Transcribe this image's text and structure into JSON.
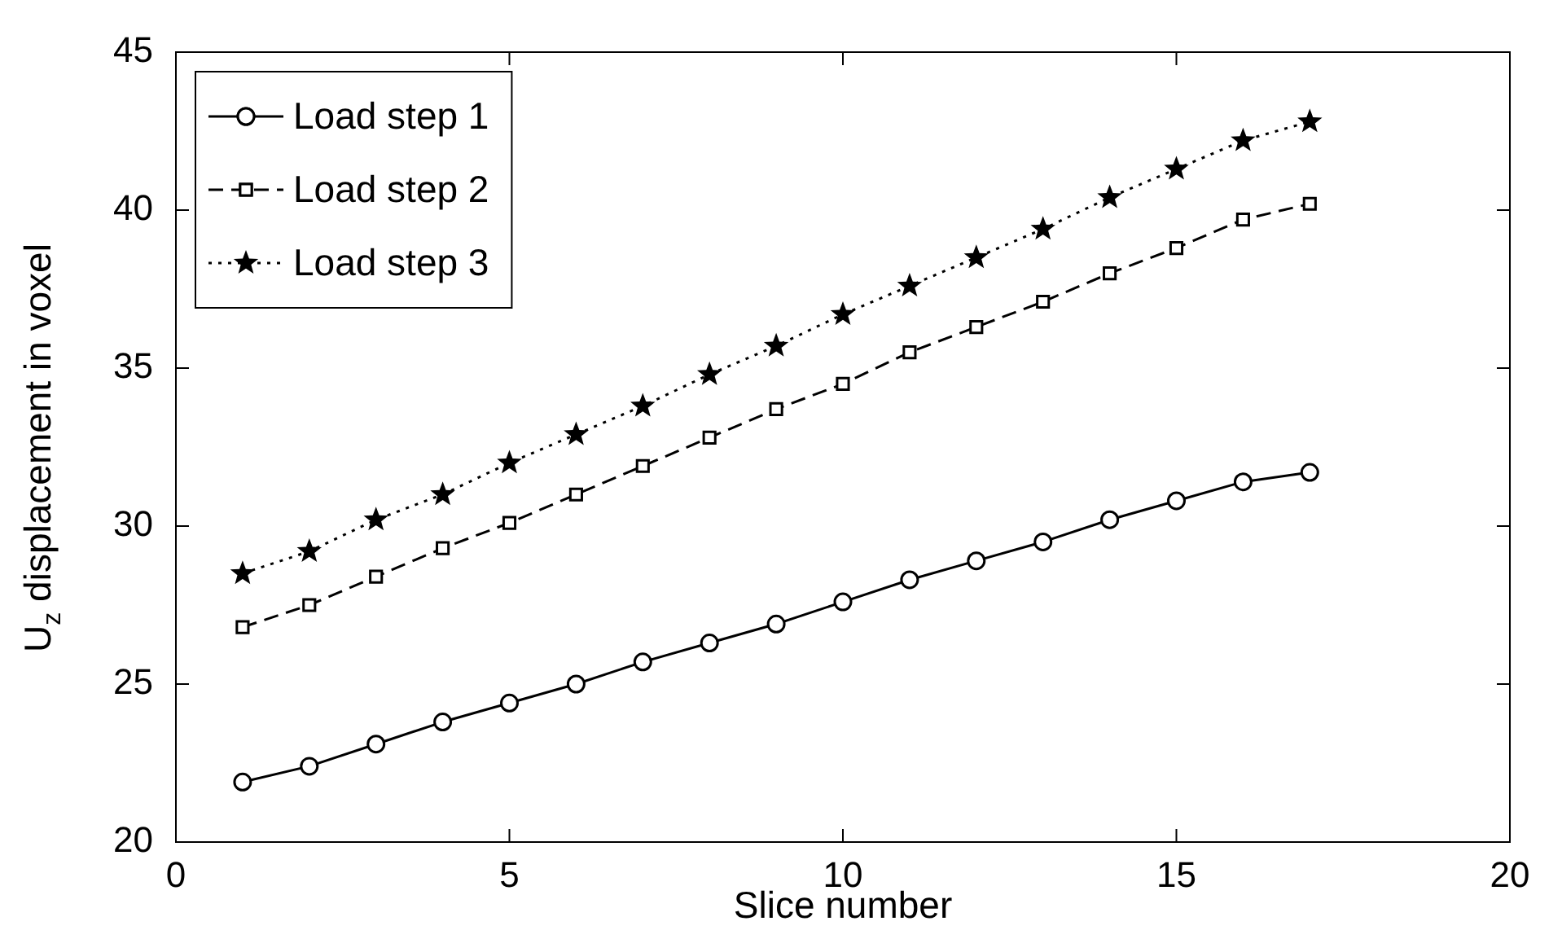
{
  "chart_data": {
    "type": "line",
    "xlabel": "Slice number",
    "ylabel": "U$_{z}$ displacement in voxel",
    "x": [
      1,
      2,
      3,
      4,
      5,
      6,
      7,
      8,
      9,
      10,
      11,
      12,
      13,
      14,
      15,
      16,
      17
    ],
    "series": [
      {
        "name": "Load step 1",
        "color": "#000000",
        "marker": "circle",
        "line_style": "solid",
        "values": [
          21.9,
          22.4,
          23.1,
          23.8,
          24.4,
          25.0,
          25.7,
          26.3,
          26.9,
          27.6,
          28.3,
          28.9,
          29.5,
          30.2,
          30.8,
          31.4,
          31.7
        ]
      },
      {
        "name": "Load step 2",
        "color": "#000000",
        "marker": "square",
        "line_style": "dashed",
        "values": [
          26.8,
          27.5,
          28.4,
          29.3,
          30.1,
          31.0,
          31.9,
          32.8,
          33.7,
          34.5,
          35.5,
          36.3,
          37.1,
          38.0,
          38.8,
          39.7,
          40.2
        ]
      },
      {
        "name": "Load step 3",
        "color": "#000000",
        "marker": "star",
        "line_style": "dotted",
        "values": [
          28.5,
          29.2,
          30.2,
          31.0,
          32.0,
          32.9,
          33.8,
          34.8,
          35.7,
          36.7,
          37.6,
          38.5,
          39.4,
          40.4,
          41.3,
          42.2,
          42.8
        ]
      }
    ],
    "xlim": [
      0,
      20
    ],
    "xticks": [
      0,
      5,
      10,
      15,
      20
    ],
    "ylim": [
      20,
      45
    ],
    "yticks": [
      20,
      25,
      30,
      35,
      40,
      45
    ],
    "grid": false,
    "legend": "top left"
  }
}
